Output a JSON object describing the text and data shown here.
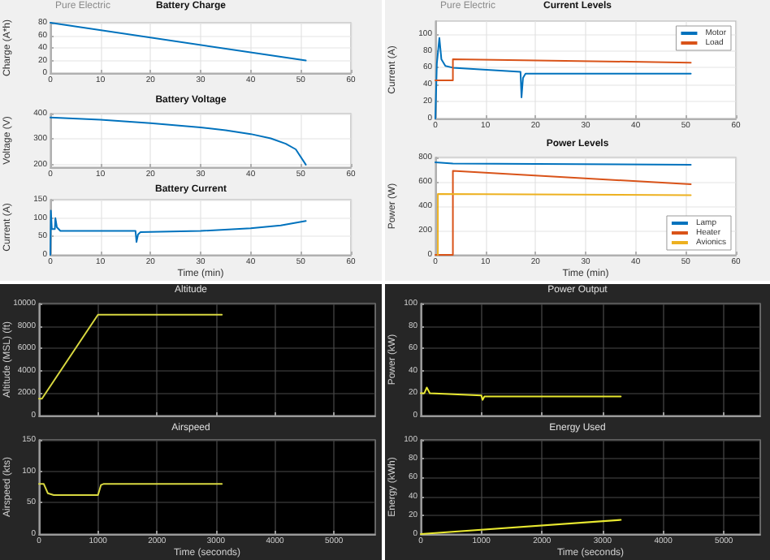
{
  "chart_data": [
    {
      "type": "line",
      "title": "Battery Charge",
      "ylabel": "Charge (A*h)",
      "annotations": [
        "Pure Electric"
      ],
      "xlim": [
        0,
        60
      ],
      "xticks": [
        0,
        10,
        20,
        30,
        40,
        50,
        60
      ],
      "ylim": [
        0,
        80
      ],
      "yticks": [
        0,
        20,
        40,
        60,
        80
      ],
      "grid": true,
      "legend": false,
      "series": [
        {
          "color": "#0072bd",
          "x": [
            0,
            51
          ],
          "values": [
            80,
            20
          ]
        }
      ]
    },
    {
      "type": "line",
      "title": "Battery Voltage",
      "ylabel": "Voltage (V)",
      "xlim": [
        0,
        60
      ],
      "xticks": [
        0,
        10,
        20,
        30,
        40,
        50,
        60
      ],
      "ylim": [
        190,
        400
      ],
      "yticks": [
        200,
        300,
        400
      ],
      "grid": true,
      "legend": false,
      "series": [
        {
          "color": "#0072bd",
          "x": [
            0,
            10,
            20,
            30,
            35,
            40,
            44,
            47,
            49,
            51
          ],
          "values": [
            385,
            376,
            363,
            346,
            335,
            320,
            303,
            282,
            260,
            200
          ]
        }
      ]
    },
    {
      "type": "line",
      "title": "Battery Current",
      "xlabel": "Time (min)",
      "ylabel": "Current (A)",
      "xlim": [
        0,
        60
      ],
      "xticks": [
        0,
        10,
        20,
        30,
        40,
        50,
        60
      ],
      "ylim": [
        0,
        150
      ],
      "yticks": [
        0,
        50,
        100,
        150
      ],
      "grid": true,
      "legend": false,
      "series": [
        {
          "color": "#0072bd",
          "x": [
            0,
            0.1,
            0.3,
            0.9,
            1,
            1.3,
            2,
            17,
            17.2,
            17.5,
            18,
            30,
            40,
            46,
            51
          ],
          "values": [
            0,
            120,
            70,
            70,
            100,
            75,
            65,
            65,
            35,
            55,
            62,
            65,
            72,
            80,
            92
          ]
        }
      ]
    },
    {
      "type": "line",
      "title": "Current Levels",
      "ylabel": "Current (A)",
      "annotations": [
        "Pure Electric"
      ],
      "xlim": [
        0,
        60
      ],
      "xticks": [
        0,
        10,
        20,
        30,
        40,
        50,
        60
      ],
      "ylim": [
        0,
        115
      ],
      "yticks": [
        0,
        20,
        40,
        60,
        80,
        100
      ],
      "grid": true,
      "legend": "top right",
      "series": [
        {
          "name": "Motor",
          "color": "#0072bd",
          "x": [
            0,
            0.3,
            0.8,
            1.2,
            2,
            3.5,
            17,
            17.2,
            17.5,
            18,
            51
          ],
          "values": [
            0,
            65,
            95,
            70,
            62,
            60,
            55,
            25,
            48,
            53,
            53
          ]
        },
        {
          "name": "Load",
          "color": "#d95319",
          "x": [
            0,
            3.5,
            3.5,
            51
          ],
          "values": [
            45,
            45,
            70,
            66
          ]
        }
      ]
    },
    {
      "type": "line",
      "title": "Power Levels",
      "xlabel": "Time (min)",
      "ylabel": "Power (W)",
      "xlim": [
        0,
        60
      ],
      "xticks": [
        0,
        10,
        20,
        30,
        40,
        50,
        60
      ],
      "ylim": [
        0,
        800
      ],
      "yticks": [
        0,
        200,
        400,
        600,
        800
      ],
      "grid": true,
      "legend": "bottom right",
      "series": [
        {
          "name": "Lamp",
          "color": "#0072bd",
          "x": [
            0,
            3.5,
            51
          ],
          "values": [
            760,
            750,
            740
          ]
        },
        {
          "name": "Heater",
          "color": "#d95319",
          "x": [
            0,
            3.5,
            3.5,
            51
          ],
          "values": [
            0,
            0,
            690,
            580
          ]
        },
        {
          "name": "Avionics",
          "color": "#edb120",
          "x": [
            0.5,
            0.5,
            51
          ],
          "values": [
            0,
            500,
            490
          ]
        }
      ]
    },
    {
      "type": "line",
      "title": "Altitude",
      "ylabel": "Altitude (MSL) (ft)",
      "xlim": [
        0,
        5700
      ],
      "xticks": [
        0,
        1000,
        2000,
        3000,
        4000,
        5000
      ],
      "ylim": [
        0,
        10000
      ],
      "yticks": [
        0,
        2000,
        4000,
        6000,
        8000,
        10000
      ],
      "grid": true,
      "legend": false,
      "tick_labels": "y",
      "series": [
        {
          "color": "#d8d840",
          "x": [
            0,
            50,
            1000,
            3100
          ],
          "values": [
            1500,
            1500,
            9000,
            9000
          ]
        }
      ]
    },
    {
      "type": "line",
      "title": "Airspeed",
      "xlabel": "Time (seconds)",
      "ylabel": "Airspeed (kts)",
      "xlim": [
        0,
        5700
      ],
      "xticks": [
        0,
        1000,
        2000,
        3000,
        4000,
        5000
      ],
      "ylim": [
        0,
        150
      ],
      "yticks": [
        0,
        50,
        100,
        150
      ],
      "grid": true,
      "legend": false,
      "series": [
        {
          "color": "#d8d840",
          "x": [
            0,
            80,
            150,
            250,
            1000,
            1050,
            1100,
            3100
          ],
          "values": [
            80,
            80,
            65,
            62,
            62,
            78,
            80,
            80
          ]
        }
      ]
    },
    {
      "type": "line",
      "title": "Power Output",
      "ylabel": "Power (kW)",
      "xlim": [
        0,
        5600
      ],
      "xticks": [
        0,
        1000,
        2000,
        3000,
        4000,
        5000
      ],
      "ylim": [
        0,
        100
      ],
      "yticks": [
        0,
        20,
        40,
        60,
        80,
        100
      ],
      "grid": true,
      "legend": false,
      "tick_labels": "y",
      "series": [
        {
          "color": "#e8e830",
          "x": [
            0,
            60,
            100,
            150,
            1000,
            1020,
            1050,
            3300
          ],
          "values": [
            20,
            20,
            25,
            20,
            18,
            14,
            17,
            17
          ]
        }
      ]
    },
    {
      "type": "line",
      "title": "Energy Used",
      "xlabel": "Time (seconds)",
      "ylabel": "Energy (kWh)",
      "xlim": [
        0,
        5600
      ],
      "xticks": [
        0,
        1000,
        2000,
        3000,
        4000,
        5000
      ],
      "ylim": [
        0,
        100
      ],
      "yticks": [
        0,
        20,
        40,
        60,
        80,
        100
      ],
      "grid": true,
      "legend": false,
      "series": [
        {
          "color": "#e8e830",
          "x": [
            0,
            3300
          ],
          "values": [
            0,
            15
          ]
        }
      ]
    }
  ]
}
